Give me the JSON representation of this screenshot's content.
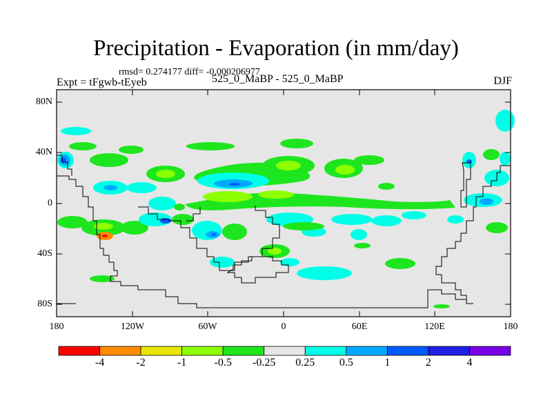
{
  "title": "Precipitation - Evaporation (in mm/day)",
  "stats": "rmsd= 0.274177 diff= -0.000206977",
  "experiment": "Expt = tFgwb-tEyeb",
  "runs": "525_0_MaBP - 525_0_MaBP",
  "season": "DJF",
  "axes": {
    "lat_labels": [
      "80N",
      "40N",
      "0",
      "40S",
      "80S"
    ],
    "lon_labels": [
      "180",
      "120W",
      "60W",
      "0",
      "60E",
      "120E",
      "180"
    ]
  },
  "colorbar": {
    "colors": [
      "#ff0000",
      "#ff8c00",
      "#e6e600",
      "#8cff00",
      "#1ee61e",
      "#e6e6e6",
      "#00ffe6",
      "#00aaff",
      "#005aff",
      "#1e1ee6",
      "#7800e6"
    ],
    "labels": [
      "-4",
      "-2",
      "-1",
      "-0.5",
      "-0.25",
      "0.25",
      "0.5",
      "1",
      "2",
      "4"
    ]
  },
  "colors": {
    "background_field": "#e6e6e6",
    "coastline": "#000000"
  }
}
